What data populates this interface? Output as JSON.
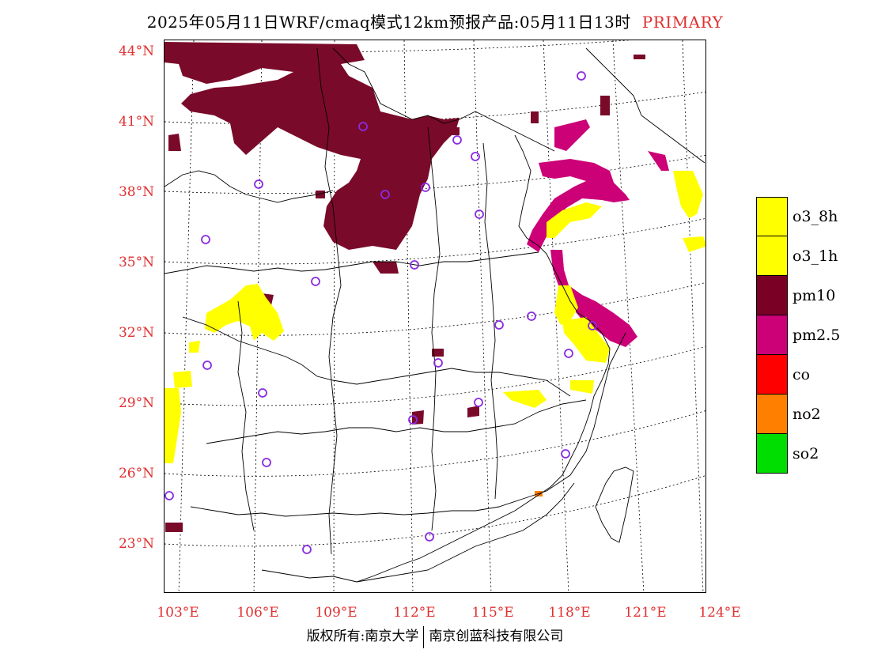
{
  "title": {
    "text": "2025年05月11日WRF/cmaq模式12km预报产品:05月11日13时",
    "tag": "PRIMARY"
  },
  "map": {
    "lat_labels": [
      "44°N",
      "41°N",
      "38°N",
      "35°N",
      "32°N",
      "29°N",
      "26°N",
      "23°N"
    ],
    "lon_labels": [
      "103°E",
      "106°E",
      "109°E",
      "112°E",
      "115°E",
      "118°E",
      "121°E",
      "124°E"
    ],
    "colors": {
      "pm10": "#7a0a2a",
      "pm25": "#cc0077",
      "o3": "#ffff00",
      "no2": "#ff8000",
      "station": "#8a2be2",
      "border": "#000000",
      "grid": "#000000"
    }
  },
  "legend": [
    {
      "label": "o3_8h",
      "color": "#ffff00"
    },
    {
      "label": "o3_1h",
      "color": "#ffff00"
    },
    {
      "label": "pm10",
      "color": "#7a0026"
    },
    {
      "label": "pm2.5",
      "color": "#cc0077"
    },
    {
      "label": "co",
      "color": "#ff0000"
    },
    {
      "label": "no2",
      "color": "#ff8000"
    },
    {
      "label": "so2",
      "color": "#00dd00"
    }
  ],
  "footer": {
    "left": "版权所有:南京大学",
    "right": "南京创蓝科技有限公司"
  }
}
